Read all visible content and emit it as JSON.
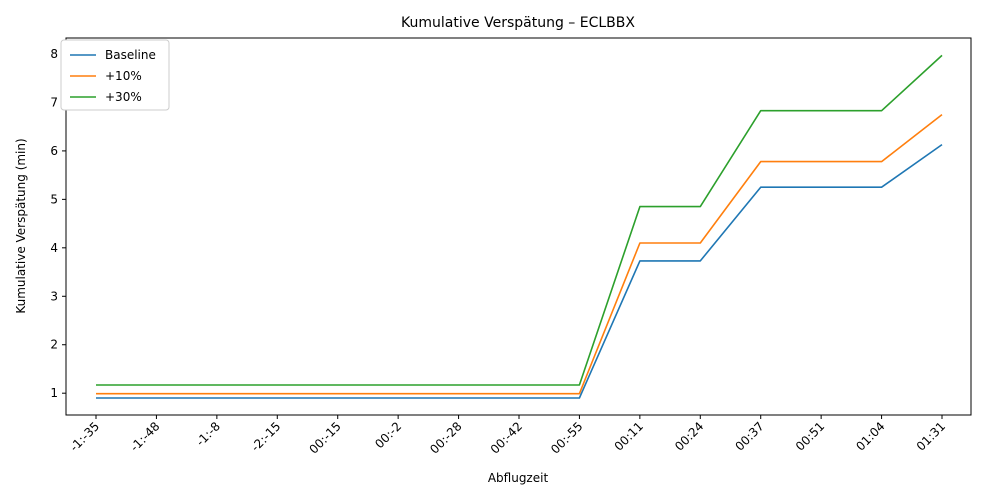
{
  "chart_data": {
    "type": "line",
    "title": "Kumulative Verspätung – ECLBBX",
    "xlabel": "Abflugzeit",
    "ylabel": "Kumulative Verspätung (min)",
    "categories": [
      "-1:-35",
      "-1:-48",
      "-1:-8",
      "-2:-15",
      "00:-15",
      "00:-2",
      "00:-28",
      "00:-42",
      "00:-55",
      "00:11",
      "00:24",
      "00:37",
      "00:51",
      "01:04",
      "01:31"
    ],
    "y_ticks": [
      1,
      2,
      3,
      4,
      5,
      6,
      7,
      8
    ],
    "ylim": [
      0.55,
      8.33
    ],
    "grid": false,
    "legend_position": "upper-left",
    "series": [
      {
        "name": "Baseline",
        "color": "#1f77b4",
        "values": [
          0.9,
          0.9,
          0.9,
          0.9,
          0.9,
          0.9,
          0.9,
          0.9,
          0.9,
          3.73,
          3.73,
          5.25,
          5.25,
          5.25,
          6.13
        ]
      },
      {
        "name": "+10%",
        "color": "#ff7f0e",
        "values": [
          0.99,
          0.99,
          0.99,
          0.99,
          0.99,
          0.99,
          0.99,
          0.99,
          0.99,
          4.1,
          4.1,
          5.78,
          5.78,
          5.78,
          6.75
        ]
      },
      {
        "name": "+30%",
        "color": "#2ca02c",
        "values": [
          1.17,
          1.17,
          1.17,
          1.17,
          1.17,
          1.17,
          1.17,
          1.17,
          1.17,
          4.85,
          4.85,
          6.83,
          6.83,
          6.83,
          7.97
        ]
      }
    ]
  }
}
